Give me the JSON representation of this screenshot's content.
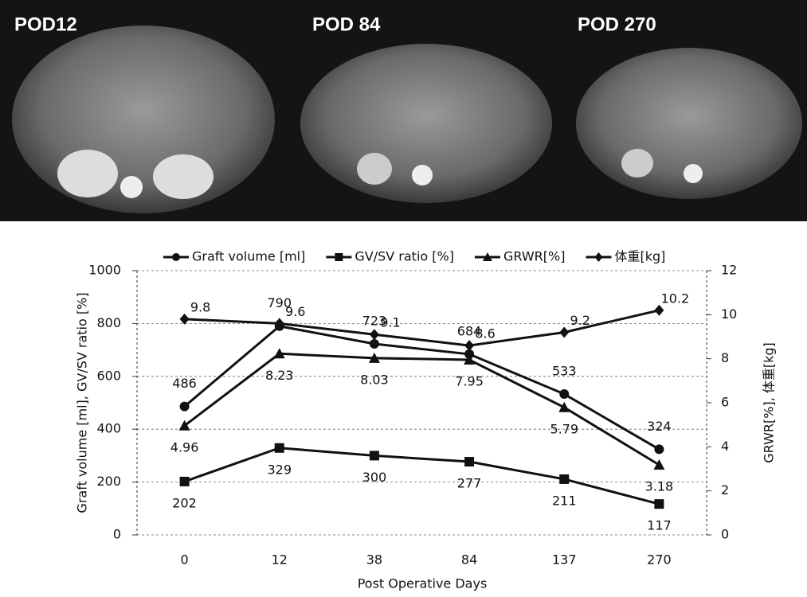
{
  "images": [
    {
      "label": "POD12"
    },
    {
      "label": "POD 84"
    },
    {
      "label": "POD 270"
    }
  ],
  "chart_data": {
    "type": "line",
    "xlabel": "Post Operative Days",
    "ylabel": "Graft volume [ml],  GV/SV ratio [%]",
    "y2label": "GRWR[%],  体重[kg]",
    "categories": [
      "0",
      "12",
      "38",
      "84",
      "137",
      "270"
    ],
    "series": [
      {
        "name": "Graft volume [ml]",
        "color": "#111111",
        "marker": "circle",
        "values": [
          486,
          790,
          723,
          684,
          533,
          324
        ]
      },
      {
        "name": "GV/SV ratio [%]",
        "color": "#111111",
        "marker": "square",
        "values": [
          202,
          329,
          300,
          277,
          211,
          117
        ]
      },
      {
        "name": "GRWR[%]",
        "color": "#111111",
        "marker": "triangle",
        "axis": "y2",
        "values": [
          4.96,
          8.23,
          8.03,
          7.95,
          5.79,
          3.18
        ]
      },
      {
        "name": "体重[kg]",
        "color": "#111111",
        "marker": "diamond",
        "axis": "y2",
        "values": [
          9.8,
          9.6,
          9.1,
          8.6,
          9.2,
          10.2
        ]
      }
    ],
    "ylim": [
      0,
      1000
    ],
    "yticks": [
      0,
      200,
      400,
      600,
      800,
      1000
    ],
    "y2lim": [
      0,
      12
    ],
    "y2ticks": [
      0,
      2,
      4,
      6,
      8,
      10,
      12
    ],
    "grid": true,
    "legend": "top"
  }
}
